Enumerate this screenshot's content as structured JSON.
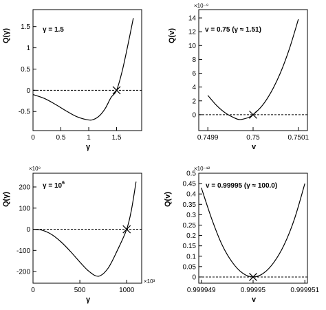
{
  "chart_data": [
    {
      "type": "line",
      "xlabel": "γ",
      "ylabel": "Q(γ)",
      "annotation": "γ = 1.5",
      "xlim": [
        0,
        1.95
      ],
      "ylim": [
        -0.95,
        1.9
      ],
      "xticks": [
        0,
        0.5,
        1,
        1.5
      ],
      "xtick_labels": [
        "0",
        "0.5",
        "1",
        "1.5"
      ],
      "yticks": [
        -0.5,
        0,
        0.5,
        1,
        1.5
      ],
      "ytick_labels": [
        "-0.5",
        "0",
        "0.5",
        "1",
        "1.5"
      ],
      "x_multiplier": "",
      "y_multiplier": "",
      "x": [
        0,
        0.2,
        0.4,
        0.6,
        0.8,
        1.0,
        1.1,
        1.2,
        1.3,
        1.4,
        1.5,
        1.6,
        1.7,
        1.8
      ],
      "y": [
        -0.1,
        -0.19,
        -0.33,
        -0.49,
        -0.63,
        -0.7,
        -0.68,
        -0.59,
        -0.42,
        -0.17,
        0.0,
        0.45,
        1.05,
        1.7
      ],
      "root": [
        1.5,
        0
      ],
      "zero_line": true,
      "grid": false
    },
    {
      "type": "line",
      "xlabel": "v",
      "ylabel": "Q(v)",
      "annotation": "v = 0.75 (γ ≈ 1.51)",
      "xlim": [
        0.74988,
        0.75012
      ],
      "ylim": [
        -2.3,
        15.2
      ],
      "xticks": [
        0.7499,
        0.75,
        0.7501
      ],
      "xtick_labels": [
        "0.7499",
        "0.75",
        "0.7501"
      ],
      "yticks": [
        0,
        2,
        4,
        6,
        8,
        10,
        12,
        14
      ],
      "ytick_labels": [
        "0",
        "2",
        "4",
        "6",
        "8",
        "10",
        "12",
        "14"
      ],
      "x_multiplier": "",
      "y_multiplier": "×10⁻⁹",
      "x": [
        0.7499,
        0.74992,
        0.74994,
        0.74996,
        0.74997,
        0.74998,
        0.74999,
        0.75,
        0.75002,
        0.75004,
        0.75006,
        0.75008,
        0.7501
      ],
      "y": [
        2.8,
        1.3,
        0.2,
        -0.5,
        -0.7,
        -0.6,
        -0.4,
        0.0,
        1.3,
        3.3,
        6.0,
        9.5,
        13.8
      ],
      "root": [
        0.75,
        0
      ],
      "zero_line": true,
      "grid": false
    },
    {
      "type": "line",
      "xlabel": "γ",
      "ylabel": "Q(γ)",
      "annotation": "γ = 10",
      "annotation_sup": "6",
      "xlim": [
        0,
        1160
      ],
      "ylim": [
        -255,
        265
      ],
      "xticks": [
        0,
        500,
        1000
      ],
      "xtick_labels": [
        "0",
        "500",
        "1000"
      ],
      "yticks": [
        -200,
        -100,
        0,
        100,
        200
      ],
      "ytick_labels": [
        "-200",
        "-100",
        "0",
        "100",
        "200"
      ],
      "x_multiplier": "×10³",
      "y_multiplier": "×10⁹",
      "x": [
        0,
        100,
        200,
        300,
        400,
        500,
        600,
        700,
        800,
        900,
        1000,
        1050,
        1100
      ],
      "y": [
        0,
        -5,
        -25,
        -60,
        -105,
        -155,
        -200,
        -222,
        -185,
        -100,
        0,
        90,
        225
      ],
      "root": [
        1000,
        0
      ],
      "zero_line": true,
      "grid": false
    },
    {
      "type": "line",
      "xlabel": "v",
      "ylabel": "Q(v)",
      "annotation": "v = 0.99995 (γ ≈ 100.0)",
      "xlim": [
        0.99994895,
        0.99995105
      ],
      "ylim": [
        -0.03,
        0.5
      ],
      "xticks": [
        0.999949,
        0.99995,
        0.999951
      ],
      "xtick_labels": [
        "0.999949",
        "0.99995",
        "0.999951"
      ],
      "yticks": [
        0,
        0.05,
        0.1,
        0.15,
        0.2,
        0.25,
        0.3,
        0.35,
        0.4,
        0.45,
        0.5
      ],
      "ytick_labels": [
        "0",
        "0.05",
        "0.1",
        "0.15",
        "0.2",
        "0.25",
        "0.3",
        "0.35",
        "0.4",
        "0.45",
        "0.5"
      ],
      "x_multiplier": "",
      "y_multiplier": "×10⁻¹²",
      "x": [
        0.999949,
        0.9999492,
        0.9999494,
        0.9999496,
        0.9999498,
        0.99995,
        0.9999502,
        0.9999504,
        0.9999506,
        0.9999508,
        0.999951
      ],
      "y": [
        0.43,
        0.28,
        0.155,
        0.07,
        0.018,
        0.0,
        0.018,
        0.07,
        0.155,
        0.28,
        0.45
      ],
      "root": [
        0.99995,
        0
      ],
      "zero_line": true,
      "grid": false
    }
  ]
}
